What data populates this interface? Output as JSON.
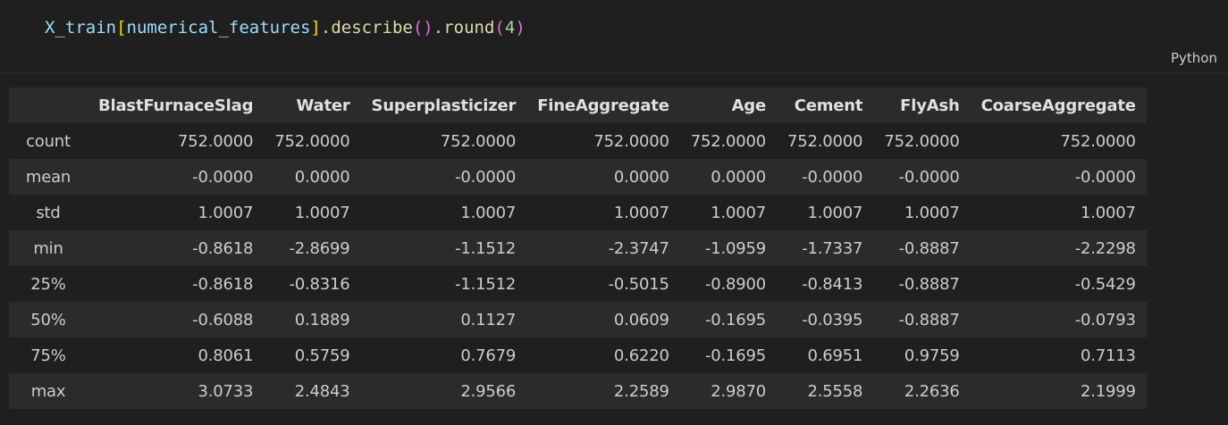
{
  "code_cell": {
    "tokens": {
      "var": "X_train",
      "open_bracket": "[",
      "arg": "numerical_features",
      "close_bracket": "]",
      "dot1": ".",
      "method1": "describe",
      "paren1": "()",
      "dot2": ".",
      "method2": "round",
      "open_paren": "(",
      "num": "4",
      "close_paren": ")"
    },
    "language": "Python"
  },
  "output_table": {
    "columns": [
      "BlastFurnaceSlag",
      "Water",
      "Superplasticizer",
      "FineAggregate",
      "Age",
      "Cement",
      "FlyAsh",
      "CoarseAggregate"
    ],
    "rows": [
      {
        "label": "count",
        "values": [
          "752.0000",
          "752.0000",
          "752.0000",
          "752.0000",
          "752.0000",
          "752.0000",
          "752.0000",
          "752.0000"
        ]
      },
      {
        "label": "mean",
        "values": [
          "-0.0000",
          "0.0000",
          "-0.0000",
          "0.0000",
          "0.0000",
          "-0.0000",
          "-0.0000",
          "-0.0000"
        ]
      },
      {
        "label": "std",
        "values": [
          "1.0007",
          "1.0007",
          "1.0007",
          "1.0007",
          "1.0007",
          "1.0007",
          "1.0007",
          "1.0007"
        ]
      },
      {
        "label": "min",
        "values": [
          "-0.8618",
          "-2.8699",
          "-1.1512",
          "-2.3747",
          "-1.0959",
          "-1.7337",
          "-0.8887",
          "-2.2298"
        ]
      },
      {
        "label": "25%",
        "values": [
          "-0.8618",
          "-0.8316",
          "-1.1512",
          "-0.5015",
          "-0.8900",
          "-0.8413",
          "-0.8887",
          "-0.5429"
        ]
      },
      {
        "label": "50%",
        "values": [
          "-0.6088",
          "0.1889",
          "0.1127",
          "0.0609",
          "-0.1695",
          "-0.0395",
          "-0.8887",
          "-0.0793"
        ]
      },
      {
        "label": "75%",
        "values": [
          "0.8061",
          "0.5759",
          "0.7679",
          "0.6220",
          "-0.1695",
          "0.6951",
          "0.9759",
          "0.7113"
        ]
      },
      {
        "label": "max",
        "values": [
          "3.0733",
          "2.4843",
          "2.9566",
          "2.2589",
          "2.9870",
          "2.5558",
          "2.2636",
          "2.1999"
        ]
      }
    ]
  }
}
